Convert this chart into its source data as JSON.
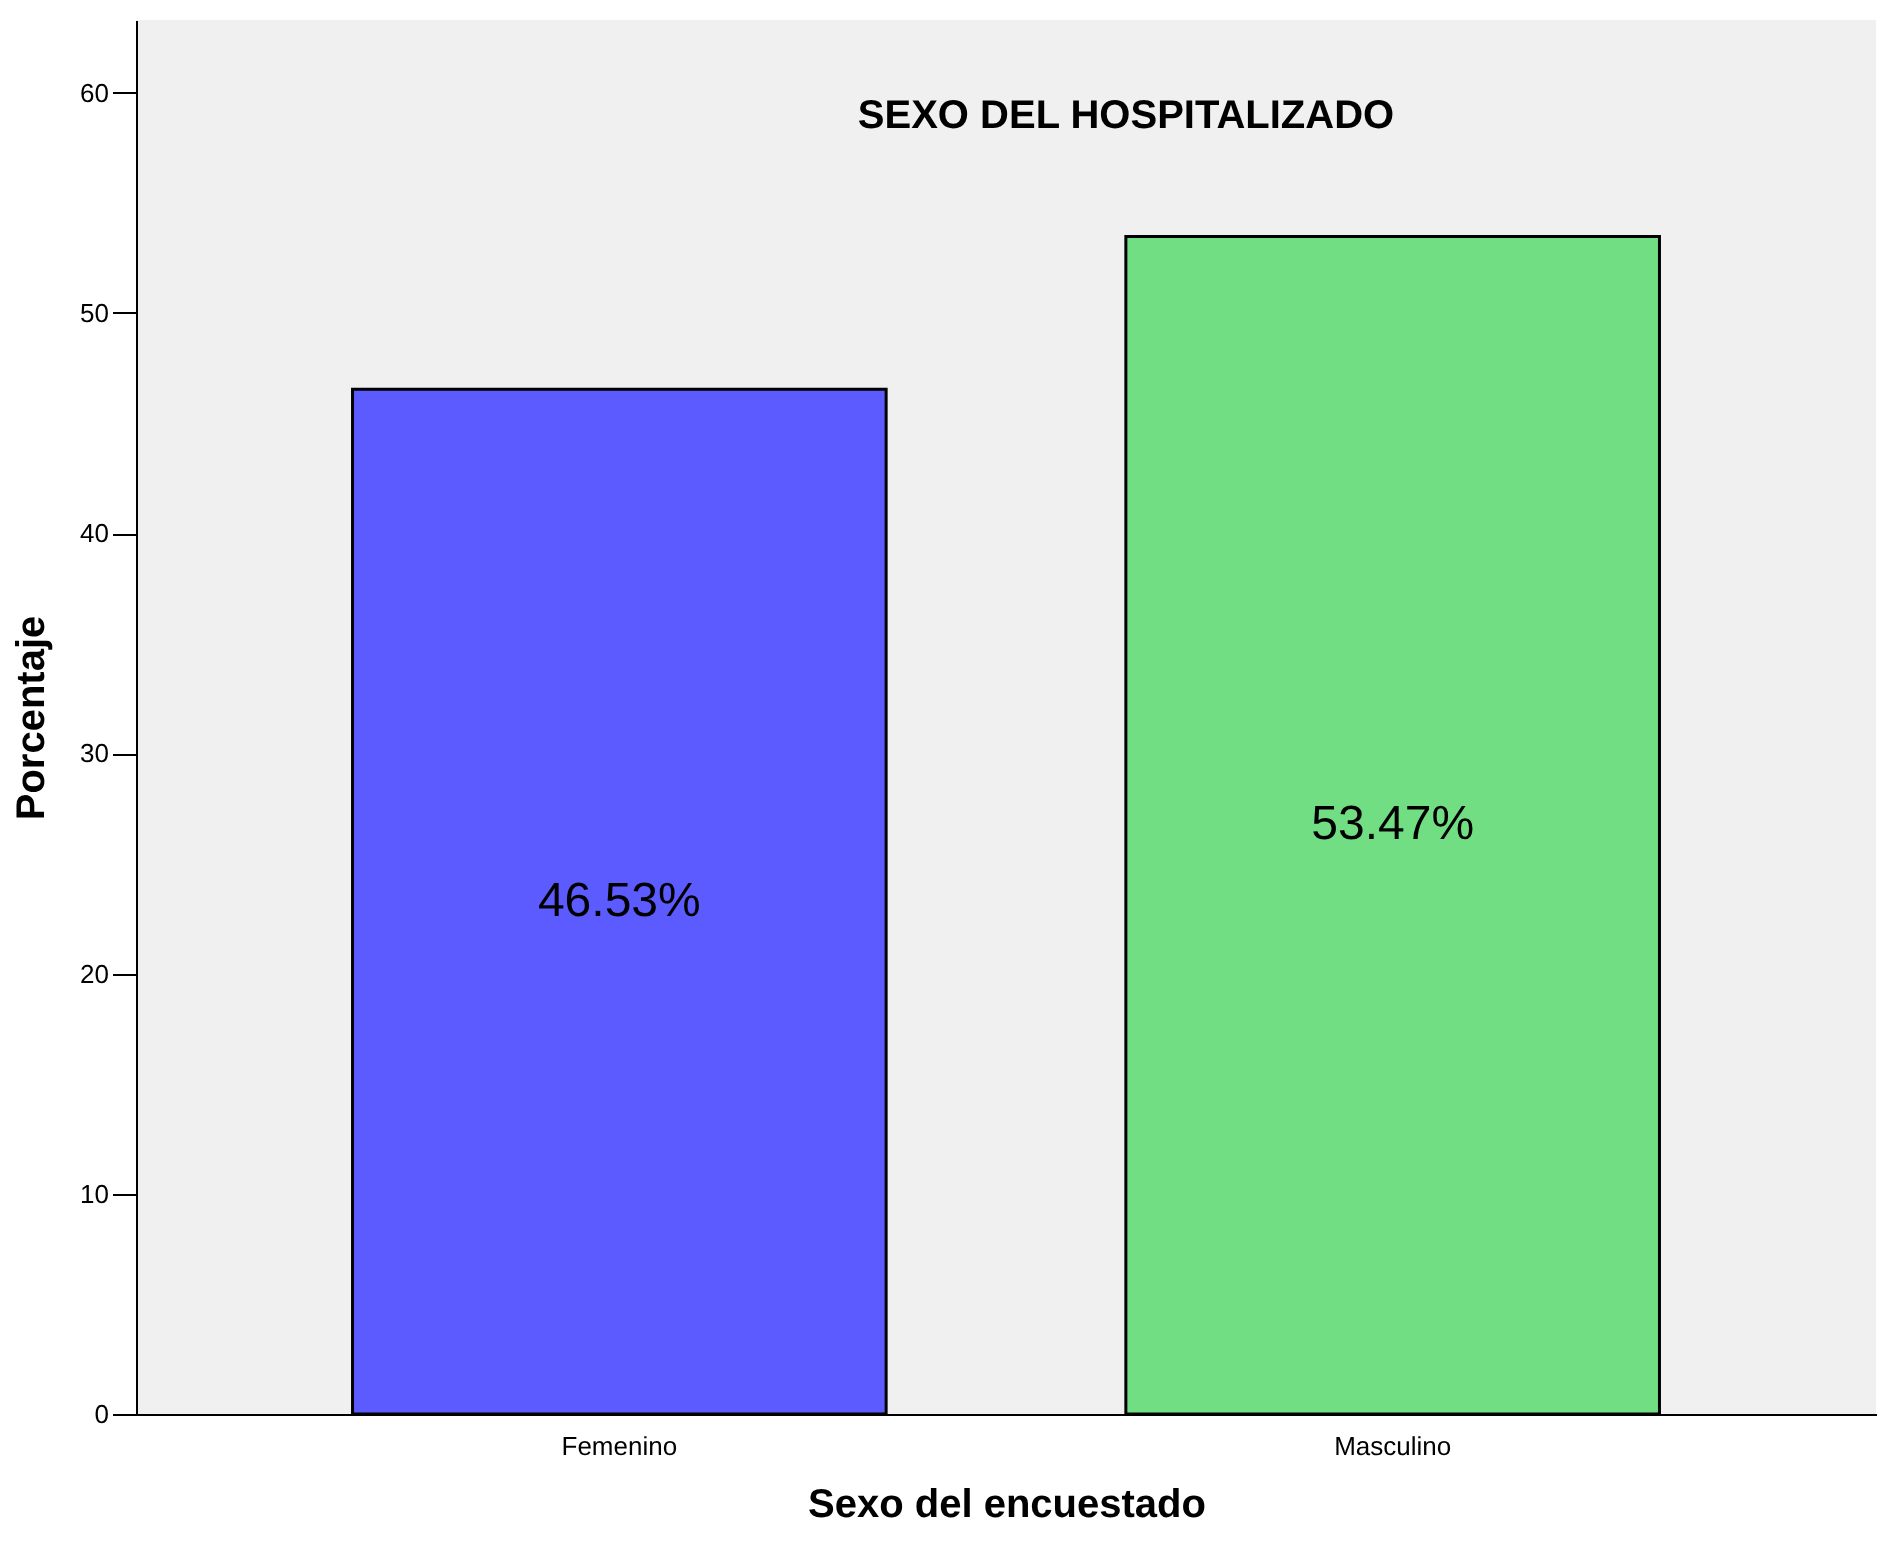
{
  "chart_data": {
    "type": "bar",
    "title": "SEXO DEL HOSPITALIZADO",
    "xlabel": "Sexo del encuestado",
    "ylabel": "Porcentaje",
    "categories": [
      "Femenino",
      "Masculino"
    ],
    "values": [
      46.53,
      53.47
    ],
    "colors": [
      "#5b5bff",
      "#72de84"
    ],
    "value_labels": [
      "46.53%",
      "53.47%"
    ],
    "ylim": [
      0,
      63.3
    ],
    "yticks": [
      0,
      10,
      20,
      30,
      40,
      50,
      60
    ],
    "grid": false
  }
}
